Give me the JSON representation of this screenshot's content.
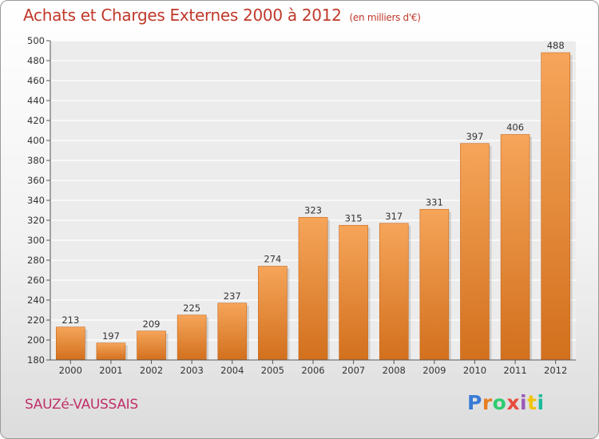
{
  "title": "Achats et Charges Externes 2000 à 2012",
  "subtitle": "(en milliers d'€)",
  "commune": "SAUZé-VAUSSAIS",
  "logo": {
    "letters": [
      "P",
      "r",
      "o",
      "x",
      "i",
      "t",
      "i"
    ],
    "colors": [
      "#3a7bd5",
      "#e67e22",
      "#2ecc71",
      "#e74c3c",
      "#9b59b6",
      "#f1c40f",
      "#1abc9c"
    ]
  },
  "colors": {
    "bar": "#f39c4a",
    "bar_dark": "#d46f1c",
    "title": "#c0392b",
    "commune": "#c0306a"
  },
  "chart_data": {
    "type": "bar",
    "categories": [
      "2000",
      "2001",
      "2002",
      "2003",
      "2004",
      "2005",
      "2006",
      "2007",
      "2008",
      "2009",
      "2010",
      "2011",
      "2012"
    ],
    "values": [
      213,
      197,
      209,
      225,
      237,
      274,
      323,
      315,
      317,
      331,
      397,
      406,
      488
    ],
    "ylim": [
      180,
      500
    ],
    "yticks": [
      180,
      200,
      220,
      240,
      260,
      280,
      300,
      320,
      340,
      360,
      380,
      400,
      420,
      440,
      460,
      480,
      500
    ],
    "grid": true
  }
}
